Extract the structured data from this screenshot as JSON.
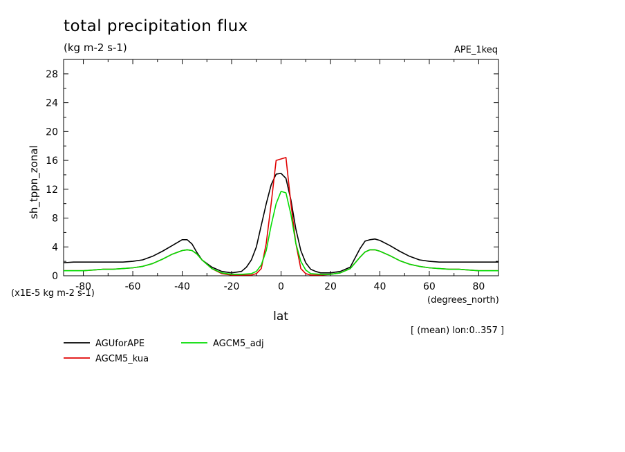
{
  "chart_data": {
    "type": "line",
    "title": "total precipitation flux",
    "units": "(kg m-2 s-1)",
    "experiment": "APE_1keq",
    "ylabel": "sh_tppn_zonal",
    "yscale_note": "(x1E-5 kg m-2 s-1)",
    "xlabel": "lat",
    "xunits": "(degrees_north)",
    "region_note": "[ (mean) lon:0..357 ]",
    "xlim": [
      -88,
      88
    ],
    "ylim": [
      0,
      30
    ],
    "xticks": [
      -80,
      -60,
      -40,
      -20,
      0,
      20,
      40,
      60,
      80
    ],
    "yticks": [
      0,
      4,
      8,
      12,
      16,
      20,
      24,
      28
    ],
    "grid": false,
    "legend_position": "bottom-left",
    "series": [
      {
        "name": "AGUforAPE",
        "color": "#000000",
        "x": [
          -88,
          -84,
          -80,
          -76,
          -72,
          -68,
          -64,
          -60,
          -56,
          -52,
          -48,
          -44,
          -40,
          -38,
          -36,
          -34,
          -32,
          -28,
          -24,
          -20,
          -16,
          -14,
          -12,
          -10,
          -8,
          -6,
          -4,
          -2,
          0,
          2,
          4,
          6,
          8,
          10,
          12,
          14,
          16,
          20,
          24,
          28,
          32,
          34,
          36,
          38,
          40,
          44,
          48,
          52,
          56,
          60,
          64,
          68,
          72,
          76,
          80,
          84,
          88
        ],
        "y": [
          1.8,
          1.9,
          1.9,
          1.9,
          1.9,
          1.9,
          1.9,
          2.0,
          2.2,
          2.7,
          3.4,
          4.2,
          5.0,
          5.0,
          4.4,
          3.2,
          2.2,
          1.2,
          0.6,
          0.4,
          0.6,
          1.2,
          2.2,
          4.0,
          7.0,
          10.0,
          12.6,
          14.1,
          14.2,
          13.5,
          10.5,
          6.5,
          3.5,
          1.8,
          0.9,
          0.6,
          0.4,
          0.4,
          0.6,
          1.2,
          3.8,
          4.8,
          5.0,
          5.1,
          4.9,
          4.2,
          3.4,
          2.7,
          2.2,
          2.0,
          1.9,
          1.9,
          1.9,
          1.9,
          1.9,
          1.9,
          1.9
        ]
      },
      {
        "name": "AGCM5_kua",
        "color": "#e00000",
        "x": [
          -88,
          -84,
          -80,
          -76,
          -72,
          -68,
          -64,
          -60,
          -56,
          -52,
          -48,
          -44,
          -40,
          -38,
          -36,
          -34,
          -32,
          -28,
          -24,
          -20,
          -16,
          -12,
          -10,
          -8,
          -6,
          -4,
          -2,
          0,
          2,
          4,
          6,
          8,
          10,
          12,
          16,
          20,
          24,
          28,
          32,
          34,
          36,
          38,
          40,
          44,
          48,
          52,
          56,
          60,
          64,
          68,
          72,
          76,
          80,
          84,
          88
        ],
        "y": [
          0.7,
          0.7,
          0.7,
          0.8,
          0.9,
          0.9,
          1.0,
          1.1,
          1.3,
          1.7,
          2.3,
          3.0,
          3.5,
          3.6,
          3.5,
          3.0,
          2.2,
          1.0,
          0.3,
          0.1,
          0.1,
          0.1,
          0.3,
          1.0,
          4.5,
          10.0,
          16.0,
          16.2,
          16.4,
          10.0,
          4.5,
          1.0,
          0.3,
          0.1,
          0.1,
          0.2,
          0.4,
          1.0,
          2.6,
          3.3,
          3.6,
          3.6,
          3.4,
          2.8,
          2.1,
          1.6,
          1.3,
          1.1,
          1.0,
          0.9,
          0.9,
          0.8,
          0.7,
          0.7,
          0.7
        ]
      },
      {
        "name": "AGCM5_adj",
        "color": "#00dd00",
        "x": [
          -88,
          -84,
          -80,
          -76,
          -72,
          -68,
          -64,
          -60,
          -56,
          -52,
          -48,
          -44,
          -40,
          -38,
          -36,
          -34,
          -32,
          -28,
          -24,
          -20,
          -16,
          -12,
          -10,
          -8,
          -6,
          -4,
          -2,
          0,
          2,
          4,
          6,
          8,
          10,
          12,
          16,
          20,
          24,
          28,
          32,
          34,
          36,
          38,
          40,
          44,
          48,
          52,
          56,
          60,
          64,
          68,
          72,
          76,
          80,
          84,
          88
        ],
        "y": [
          0.7,
          0.7,
          0.7,
          0.8,
          0.9,
          0.9,
          1.0,
          1.1,
          1.3,
          1.7,
          2.3,
          3.0,
          3.5,
          3.6,
          3.5,
          3.0,
          2.2,
          1.0,
          0.4,
          0.2,
          0.2,
          0.3,
          0.6,
          1.5,
          3.5,
          7.0,
          10.0,
          11.7,
          11.5,
          8.5,
          4.5,
          2.0,
          0.8,
          0.3,
          0.2,
          0.2,
          0.4,
          1.0,
          2.6,
          3.3,
          3.6,
          3.6,
          3.4,
          2.8,
          2.1,
          1.6,
          1.3,
          1.1,
          1.0,
          0.9,
          0.9,
          0.8,
          0.7,
          0.7,
          0.7
        ]
      }
    ]
  }
}
